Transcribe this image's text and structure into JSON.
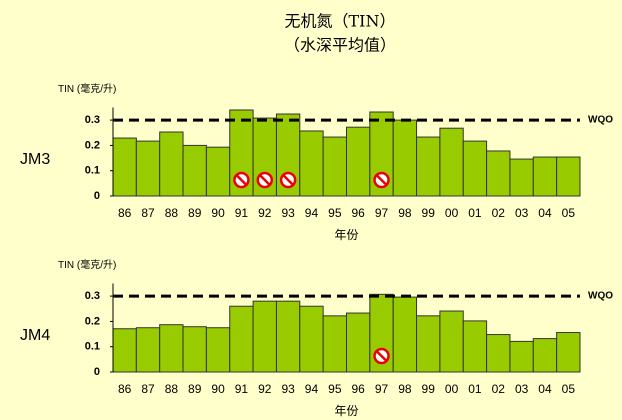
{
  "title": "无机氮（TIN）",
  "subtitle": "（水深平均值）",
  "chart_data": [
    {
      "type": "bar",
      "panel_label": "JM3",
      "ylabel": "TIN (毫克/升)",
      "xlabel": "年份",
      "categories": [
        "86",
        "87",
        "88",
        "89",
        "90",
        "91",
        "92",
        "93",
        "94",
        "95",
        "96",
        "97",
        "98",
        "99",
        "00",
        "01",
        "02",
        "03",
        "04",
        "05"
      ],
      "values": [
        0.229,
        0.217,
        0.253,
        0.2,
        0.193,
        0.34,
        0.308,
        0.324,
        0.257,
        0.233,
        0.272,
        0.332,
        0.3,
        0.233,
        0.268,
        0.217,
        0.178,
        0.146,
        0.154,
        0.154
      ],
      "color": "#99cc00",
      "ylim": [
        0,
        0.35
      ],
      "yticks": [
        0,
        0.1,
        0.2,
        0.3
      ],
      "reference": {
        "value": 0.3,
        "label": "WQO"
      },
      "flagged": [
        "91",
        "92",
        "93",
        "97"
      ]
    },
    {
      "type": "bar",
      "panel_label": "JM4",
      "ylabel": "TIN (毫克/升)",
      "xlabel": "年份",
      "categories": [
        "86",
        "87",
        "88",
        "89",
        "90",
        "91",
        "92",
        "93",
        "94",
        "95",
        "96",
        "97",
        "98",
        "99",
        "00",
        "01",
        "02",
        "03",
        "04",
        "05"
      ],
      "values": [
        0.171,
        0.175,
        0.187,
        0.179,
        0.175,
        0.26,
        0.28,
        0.28,
        0.26,
        0.222,
        0.233,
        0.307,
        0.296,
        0.222,
        0.241,
        0.202,
        0.148,
        0.121,
        0.132,
        0.156
      ],
      "color": "#99cc00",
      "ylim": [
        0,
        0.35
      ],
      "yticks": [
        0,
        0.1,
        0.2,
        0.3
      ],
      "reference": {
        "value": 0.3,
        "label": "WQO"
      },
      "flagged": [
        "97"
      ]
    }
  ]
}
